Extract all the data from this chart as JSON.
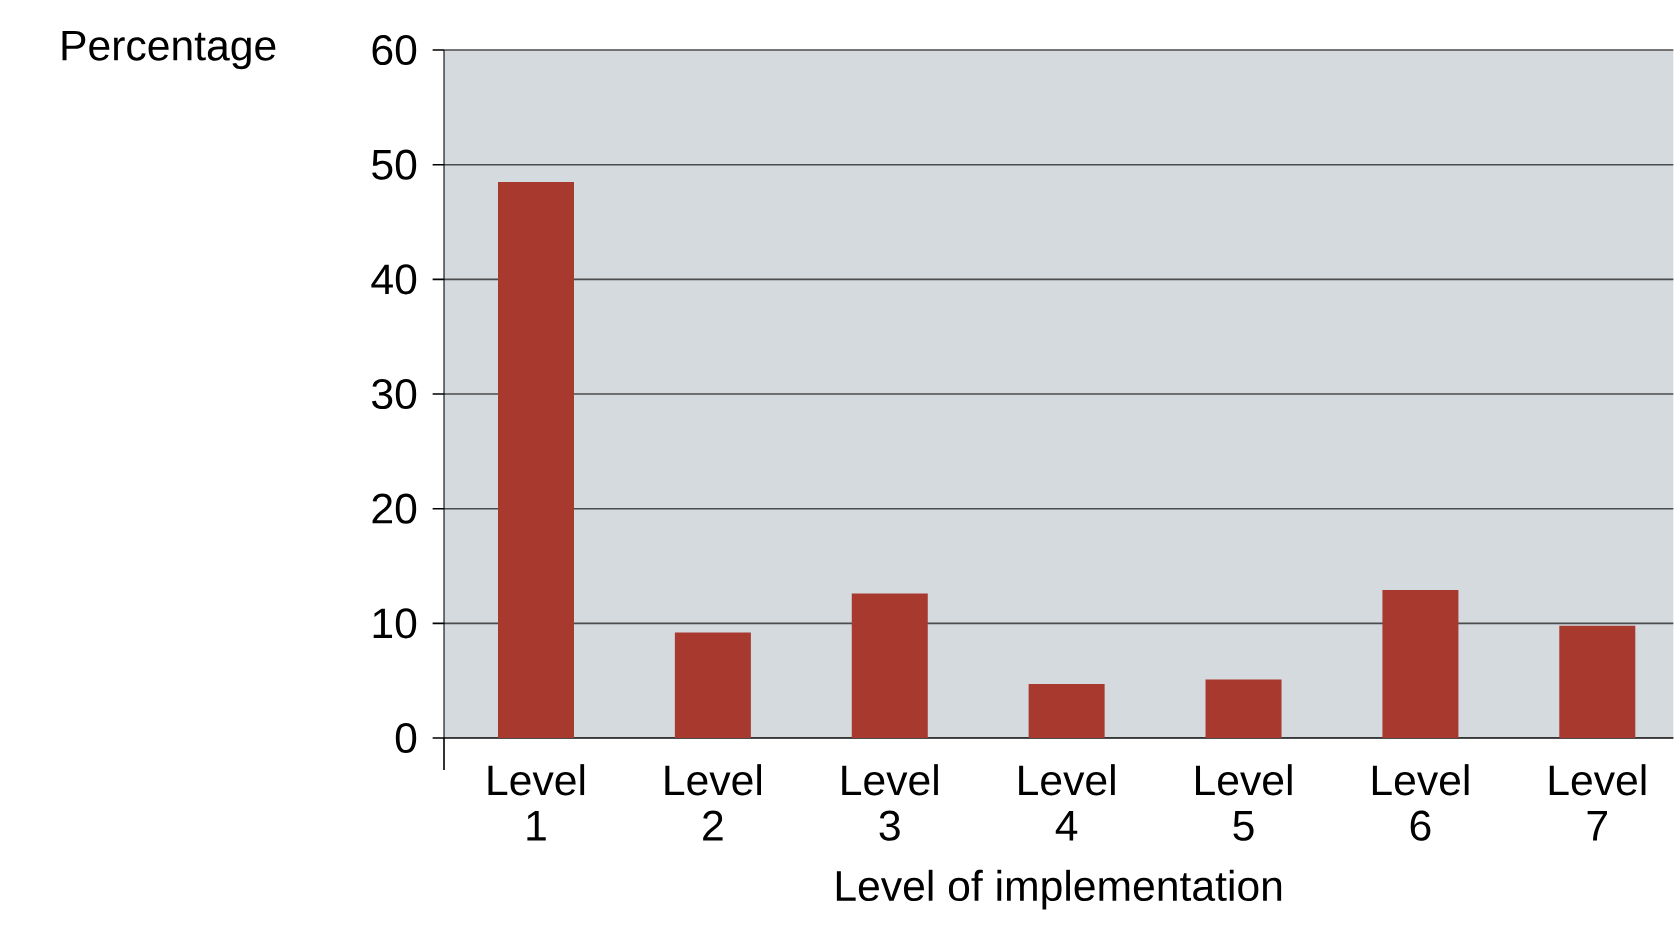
{
  "chart_data": {
    "type": "bar",
    "ylabel": "Percentage",
    "xlabel": "Level of implementation",
    "categories": [
      "Level 1",
      "Level 2",
      "Level 3",
      "Level 4",
      "Level 5",
      "Level 6",
      "Level 7"
    ],
    "values": [
      48.5,
      9.2,
      12.6,
      4.7,
      5.1,
      12.9,
      9.8
    ],
    "color": "#a8392f",
    "ylim": [
      0,
      60
    ],
    "yticks": [
      0,
      10,
      20,
      30,
      40,
      50,
      60
    ],
    "grid": "y"
  }
}
